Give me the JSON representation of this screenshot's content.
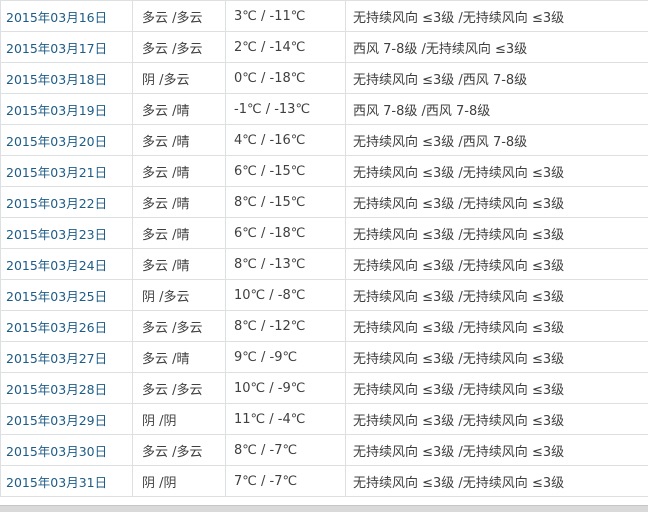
{
  "table": {
    "columns": [
      "date",
      "weather",
      "temperature",
      "wind"
    ],
    "rows": [
      {
        "date": "2015年03月16日",
        "weather": "多云 /多云",
        "temperature": "3℃ / -11℃",
        "wind": "无持续风向 ≤3级 /无持续风向 ≤3级"
      },
      {
        "date": "2015年03月17日",
        "weather": "多云 /多云",
        "temperature": "2℃ / -14℃",
        "wind": "西风 7-8级 /无持续风向 ≤3级"
      },
      {
        "date": "2015年03月18日",
        "weather": "阴 /多云",
        "temperature": "0℃ / -18℃",
        "wind": "无持续风向 ≤3级 /西风 7-8级"
      },
      {
        "date": "2015年03月19日",
        "weather": "多云 /晴",
        "temperature": "-1℃ / -13℃",
        "wind": "西风 7-8级 /西风 7-8级"
      },
      {
        "date": "2015年03月20日",
        "weather": "多云 /晴",
        "temperature": "4℃ / -16℃",
        "wind": "无持续风向 ≤3级 /西风 7-8级"
      },
      {
        "date": "2015年03月21日",
        "weather": "多云 /晴",
        "temperature": "6℃ / -15℃",
        "wind": "无持续风向 ≤3级 /无持续风向 ≤3级"
      },
      {
        "date": "2015年03月22日",
        "weather": "多云 /晴",
        "temperature": "8℃ / -15℃",
        "wind": "无持续风向 ≤3级 /无持续风向 ≤3级"
      },
      {
        "date": "2015年03月23日",
        "weather": "多云 /晴",
        "temperature": "6℃ / -18℃",
        "wind": "无持续风向 ≤3级 /无持续风向 ≤3级"
      },
      {
        "date": "2015年03月24日",
        "weather": "多云 /晴",
        "temperature": "8℃ / -13℃",
        "wind": "无持续风向 ≤3级 /无持续风向 ≤3级"
      },
      {
        "date": "2015年03月25日",
        "weather": "阴 /多云",
        "temperature": "10℃ / -8℃",
        "wind": "无持续风向 ≤3级 /无持续风向 ≤3级"
      },
      {
        "date": "2015年03月26日",
        "weather": "多云 /多云",
        "temperature": "8℃ / -12℃",
        "wind": "无持续风向 ≤3级 /无持续风向 ≤3级"
      },
      {
        "date": "2015年03月27日",
        "weather": "多云 /晴",
        "temperature": "9℃ / -9℃",
        "wind": "无持续风向 ≤3级 /无持续风向 ≤3级"
      },
      {
        "date": "2015年03月28日",
        "weather": "多云 /多云",
        "temperature": "10℃ / -9℃",
        "wind": "无持续风向 ≤3级 /无持续风向 ≤3级"
      },
      {
        "date": "2015年03月29日",
        "weather": "阴 /阴",
        "temperature": "11℃ / -4℃",
        "wind": "无持续风向 ≤3级 /无持续风向 ≤3级"
      },
      {
        "date": "2015年03月30日",
        "weather": "多云 /多云",
        "temperature": "8℃ / -7℃",
        "wind": "无持续风向 ≤3级 /无持续风向 ≤3级"
      },
      {
        "date": "2015年03月31日",
        "weather": "阴 /阴",
        "temperature": "7℃ / -7℃",
        "wind": "无持续风向 ≤3级 /无持续风向 ≤3级"
      }
    ]
  },
  "colors": {
    "date_link": "#1d5c87",
    "text": "#404040",
    "border": "#dde0e2",
    "bottom_bar": "#d9d9d9",
    "bottom_bar_edge": "#c6c6c6"
  }
}
